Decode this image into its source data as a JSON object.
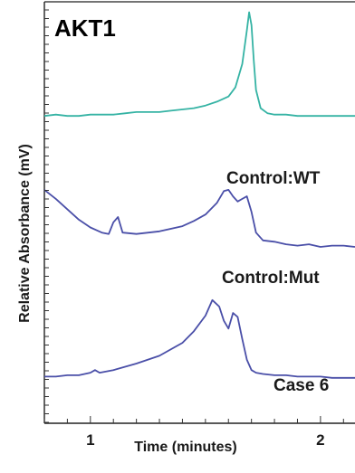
{
  "chart_data": {
    "type": "line",
    "title": "AKT1",
    "xlabel": "Time (minutes)",
    "ylabel": "Relative Absorbance (mV)",
    "xlim": [
      0.8,
      2.15
    ],
    "x_ticks": [
      {
        "value": 1,
        "label": "1"
      },
      {
        "value": 2,
        "label": "2"
      }
    ],
    "grid": false,
    "legend": "none",
    "series": [
      {
        "name": "Control:WT",
        "color": "#35b3a4",
        "baseline_offset": 2.0,
        "x": [
          0.8,
          0.85,
          0.9,
          0.95,
          1.0,
          1.05,
          1.1,
          1.15,
          1.2,
          1.25,
          1.3,
          1.35,
          1.4,
          1.45,
          1.5,
          1.55,
          1.6,
          1.63,
          1.66,
          1.68,
          1.69,
          1.7,
          1.71,
          1.72,
          1.74,
          1.77,
          1.8,
          1.85,
          1.9,
          1.95,
          2.0,
          2.05,
          2.1,
          2.15
        ],
        "y": [
          0.02,
          0.03,
          0.02,
          0.02,
          0.03,
          0.03,
          0.03,
          0.04,
          0.05,
          0.05,
          0.05,
          0.06,
          0.07,
          0.08,
          0.1,
          0.13,
          0.17,
          0.24,
          0.42,
          0.68,
          0.82,
          0.72,
          0.45,
          0.22,
          0.08,
          0.04,
          0.03,
          0.03,
          0.02,
          0.02,
          0.02,
          0.02,
          0.02,
          0.02
        ]
      },
      {
        "name": "Control:Mut",
        "color": "#4a4fa8",
        "baseline_offset": 1.0,
        "x": [
          0.8,
          0.85,
          0.9,
          0.95,
          1.0,
          1.05,
          1.08,
          1.1,
          1.12,
          1.14,
          1.2,
          1.3,
          1.4,
          1.45,
          1.5,
          1.55,
          1.58,
          1.6,
          1.62,
          1.64,
          1.66,
          1.68,
          1.7,
          1.72,
          1.75,
          1.8,
          1.85,
          1.9,
          1.95,
          2.0,
          2.05,
          2.1,
          2.15
        ],
        "y": [
          0.45,
          0.38,
          0.3,
          0.22,
          0.16,
          0.12,
          0.11,
          0.2,
          0.24,
          0.12,
          0.11,
          0.13,
          0.17,
          0.21,
          0.26,
          0.35,
          0.44,
          0.45,
          0.4,
          0.36,
          0.38,
          0.4,
          0.28,
          0.12,
          0.06,
          0.05,
          0.03,
          0.02,
          0.03,
          0.01,
          0.02,
          0.02,
          0.01
        ]
      },
      {
        "name": "Case 6",
        "color": "#4a4fa8",
        "baseline_offset": 0.0,
        "x": [
          0.8,
          0.85,
          0.9,
          0.95,
          1.0,
          1.02,
          1.04,
          1.1,
          1.2,
          1.3,
          1.4,
          1.45,
          1.5,
          1.53,
          1.56,
          1.58,
          1.6,
          1.62,
          1.64,
          1.66,
          1.68,
          1.7,
          1.72,
          1.75,
          1.8,
          1.85,
          1.9,
          1.95,
          2.0,
          2.05,
          2.1,
          2.15
        ],
        "y": [
          0.01,
          0.01,
          0.02,
          0.02,
          0.04,
          0.06,
          0.04,
          0.06,
          0.11,
          0.17,
          0.27,
          0.36,
          0.48,
          0.6,
          0.55,
          0.44,
          0.38,
          0.5,
          0.47,
          0.3,
          0.14,
          0.06,
          0.04,
          0.03,
          0.02,
          0.02,
          0.01,
          0.01,
          0.01,
          0.0,
          0.0,
          0.0
        ]
      }
    ]
  }
}
